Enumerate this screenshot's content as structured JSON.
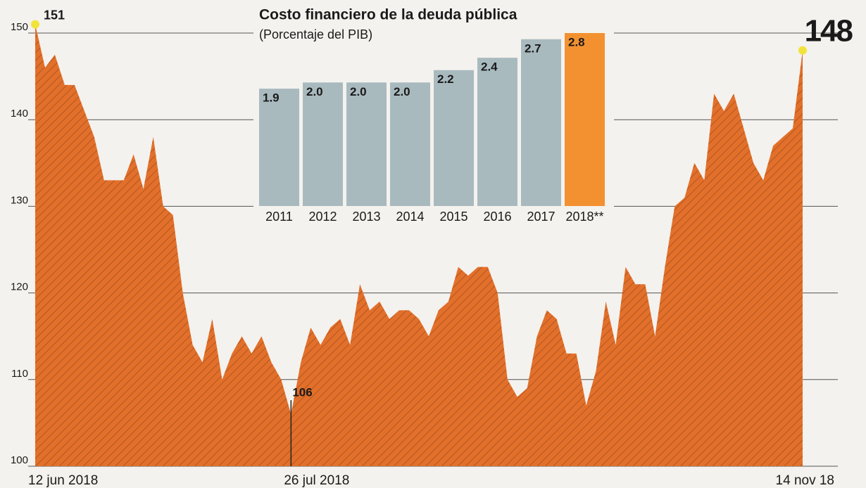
{
  "chart_data": [
    {
      "type": "area",
      "categories": [
        "12 jun 2018",
        null,
        null,
        null,
        null,
        null,
        null,
        null,
        null,
        null,
        null,
        null,
        null,
        null,
        null,
        null,
        null,
        null,
        null,
        null,
        null,
        null,
        null,
        null,
        null,
        null,
        "26 jul 2018",
        null,
        null,
        null,
        null,
        null,
        null,
        null,
        null,
        null,
        null,
        null,
        null,
        null,
        null,
        null,
        null,
        null,
        null,
        null,
        null,
        null,
        null,
        null,
        null,
        null,
        null,
        null,
        null,
        null,
        null,
        null,
        null,
        null,
        null,
        null,
        null,
        null,
        null,
        null,
        null,
        null,
        null,
        null,
        null,
        null,
        null,
        null,
        null,
        null,
        null,
        null,
        "14 nov 18"
      ],
      "values": [
        151,
        146,
        147.5,
        144,
        144,
        141,
        138,
        133,
        133,
        133,
        136,
        132,
        138,
        130,
        129,
        120,
        114,
        112,
        117,
        110,
        113,
        115,
        113,
        115,
        112,
        110,
        106,
        112,
        116,
        114,
        116,
        117,
        114,
        121,
        118,
        119,
        117,
        118,
        118,
        117,
        115,
        118,
        119,
        123,
        122,
        123,
        123,
        120,
        110,
        108,
        109,
        115,
        118,
        117,
        113,
        113,
        107,
        111,
        119,
        114,
        123,
        121,
        121,
        115,
        123,
        130,
        131,
        135,
        133,
        143,
        141,
        143,
        139,
        135,
        133,
        137,
        138,
        139,
        148
      ],
      "color": "#e2702b",
      "ylim": [
        100,
        151
      ],
      "yticks": [
        100,
        110,
        120,
        130,
        140,
        150
      ],
      "grid": true
    },
    {
      "type": "bar",
      "title": "Costo financiero de la deuda pública",
      "subtitle": "(Porcentaje del PIB)",
      "categories": [
        "2011",
        "2012",
        "2013",
        "2014",
        "2015",
        "2016",
        "2017",
        "2018**"
      ],
      "values": [
        1.9,
        2.0,
        2.0,
        2.0,
        2.2,
        2.4,
        2.7,
        2.8
      ],
      "value_labels": [
        "1.9",
        "2.0",
        "2.0",
        "2.0",
        "2.2",
        "2.4",
        "2.7",
        "2.8"
      ],
      "colors": [
        "#a9babf",
        "#a9babf",
        "#a9babf",
        "#a9babf",
        "#a9babf",
        "#a9babf",
        "#a9babf",
        "#f39131"
      ]
    }
  ]
}
